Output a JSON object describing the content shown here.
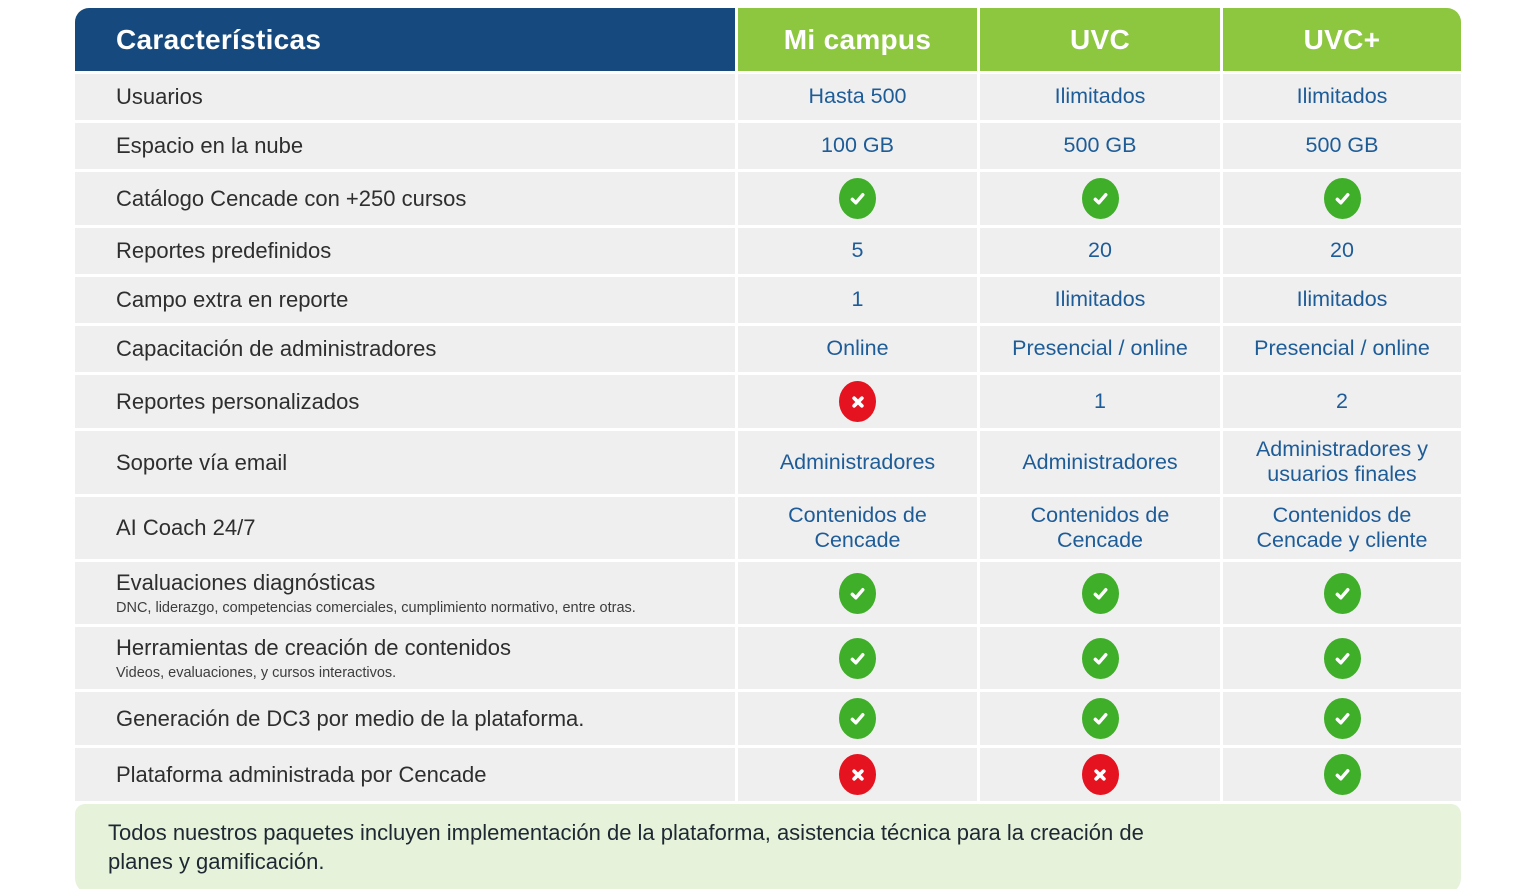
{
  "colors": {
    "header_navy": "#164A7E",
    "header_green": "#8DC63F",
    "row_background": "#EFEFEF",
    "value_text_blue": "#1E5C98",
    "check_icon_green": "#3FAE29",
    "cross_icon_red": "#E5121F",
    "footer_background": "#E6F2DA"
  },
  "chart_data": {
    "type": "table",
    "title": "Características",
    "columns": [
      "Características",
      "Mi campus",
      "UVC",
      "UVC+"
    ],
    "rows": [
      {
        "feature": "Usuarios",
        "subtext": "",
        "values": [
          "Hasta 500",
          "Ilimitados",
          "Ilimitados"
        ]
      },
      {
        "feature": "Espacio en la nube",
        "subtext": "",
        "values": [
          "100 GB",
          "500 GB",
          "500 GB"
        ]
      },
      {
        "feature": "Catálogo Cencade con +250 cursos",
        "subtext": "",
        "values": [
          "check",
          "check",
          "check"
        ]
      },
      {
        "feature": "Reportes predefinidos",
        "subtext": "",
        "values": [
          "5",
          "20",
          "20"
        ]
      },
      {
        "feature": "Campo extra en reporte",
        "subtext": "",
        "values": [
          "1",
          "Ilimitados",
          "Ilimitados"
        ]
      },
      {
        "feature": "Capacitación de administradores",
        "subtext": "",
        "values": [
          "Online",
          "Presencial / online",
          "Presencial / online"
        ]
      },
      {
        "feature": "Reportes personalizados",
        "subtext": "",
        "values": [
          "cross",
          "1",
          "2"
        ]
      },
      {
        "feature": "Soporte vía email",
        "subtext": "",
        "values": [
          "Administradores",
          "Administradores",
          "Administradores y usuarios finales"
        ]
      },
      {
        "feature": "AI Coach 24/7",
        "subtext": "",
        "values": [
          "Contenidos de Cencade",
          "Contenidos de Cencade",
          "Contenidos de Cencade y cliente"
        ]
      },
      {
        "feature": "Evaluaciones diagnósticas",
        "subtext": "DNC, liderazgo, competencias comerciales, cumplimiento normativo, entre otras.",
        "values": [
          "check",
          "check",
          "check"
        ]
      },
      {
        "feature": "Herramientas de creación de contenidos",
        "subtext": "Videos, evaluaciones, y cursos interactivos.",
        "values": [
          "check",
          "check",
          "check"
        ]
      },
      {
        "feature": "Generación de DC3 por medio de la plataforma.",
        "subtext": "",
        "values": [
          "check",
          "check",
          "check"
        ]
      },
      {
        "feature": "Plataforma administrada por Cencade",
        "subtext": "",
        "values": [
          "cross",
          "cross",
          "check"
        ]
      }
    ],
    "footnote": "Todos nuestros paquetes incluyen implementación de la plataforma, asistencia técnica para la creación de planes y gamificación."
  }
}
